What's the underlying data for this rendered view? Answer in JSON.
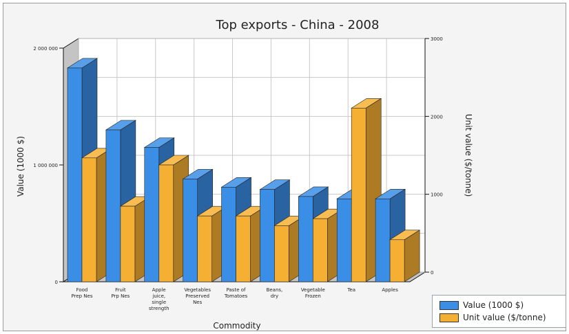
{
  "chart_data": {
    "type": "bar",
    "title": "Top exports - China - 2008",
    "xlabel": "Commodity",
    "ylabel": "Value (1000 $)",
    "y2label": "Unit value ($/tonne)",
    "categories": [
      [
        "Food",
        "Prep Nes"
      ],
      [
        "Fruit",
        "Prp Nes"
      ],
      [
        "Apple",
        "juice,",
        "single",
        "strength"
      ],
      [
        "Vegetables",
        "Preserved",
        "Nes"
      ],
      [
        "Paste of",
        "Tomatoes"
      ],
      [
        "Beans,",
        "dry"
      ],
      [
        "Vegetable",
        "Frozen"
      ],
      [
        "Tea"
      ],
      [
        "Apples"
      ]
    ],
    "series": [
      {
        "name": "Value (1000 $)",
        "axis": "left",
        "color": "#3b8ee6",
        "values": [
          1830000,
          1300000,
          1150000,
          880000,
          810000,
          790000,
          730000,
          710000,
          710000
        ]
      },
      {
        "name": "Unit value ($/tonne)",
        "axis": "right",
        "color": "#f5b034",
        "values": [
          1590,
          970,
          1500,
          845,
          845,
          720,
          810,
          2230,
          540
        ]
      }
    ],
    "ylim": [
      0,
      2000000
    ],
    "yticks": [
      "0",
      "1 000 000",
      "2 000 000"
    ],
    "y2lim": [
      0,
      3000
    ],
    "y2ticks": [
      "0",
      "1000",
      "2000",
      "3000"
    ],
    "grid": true,
    "legend_position": "bottom-right"
  }
}
